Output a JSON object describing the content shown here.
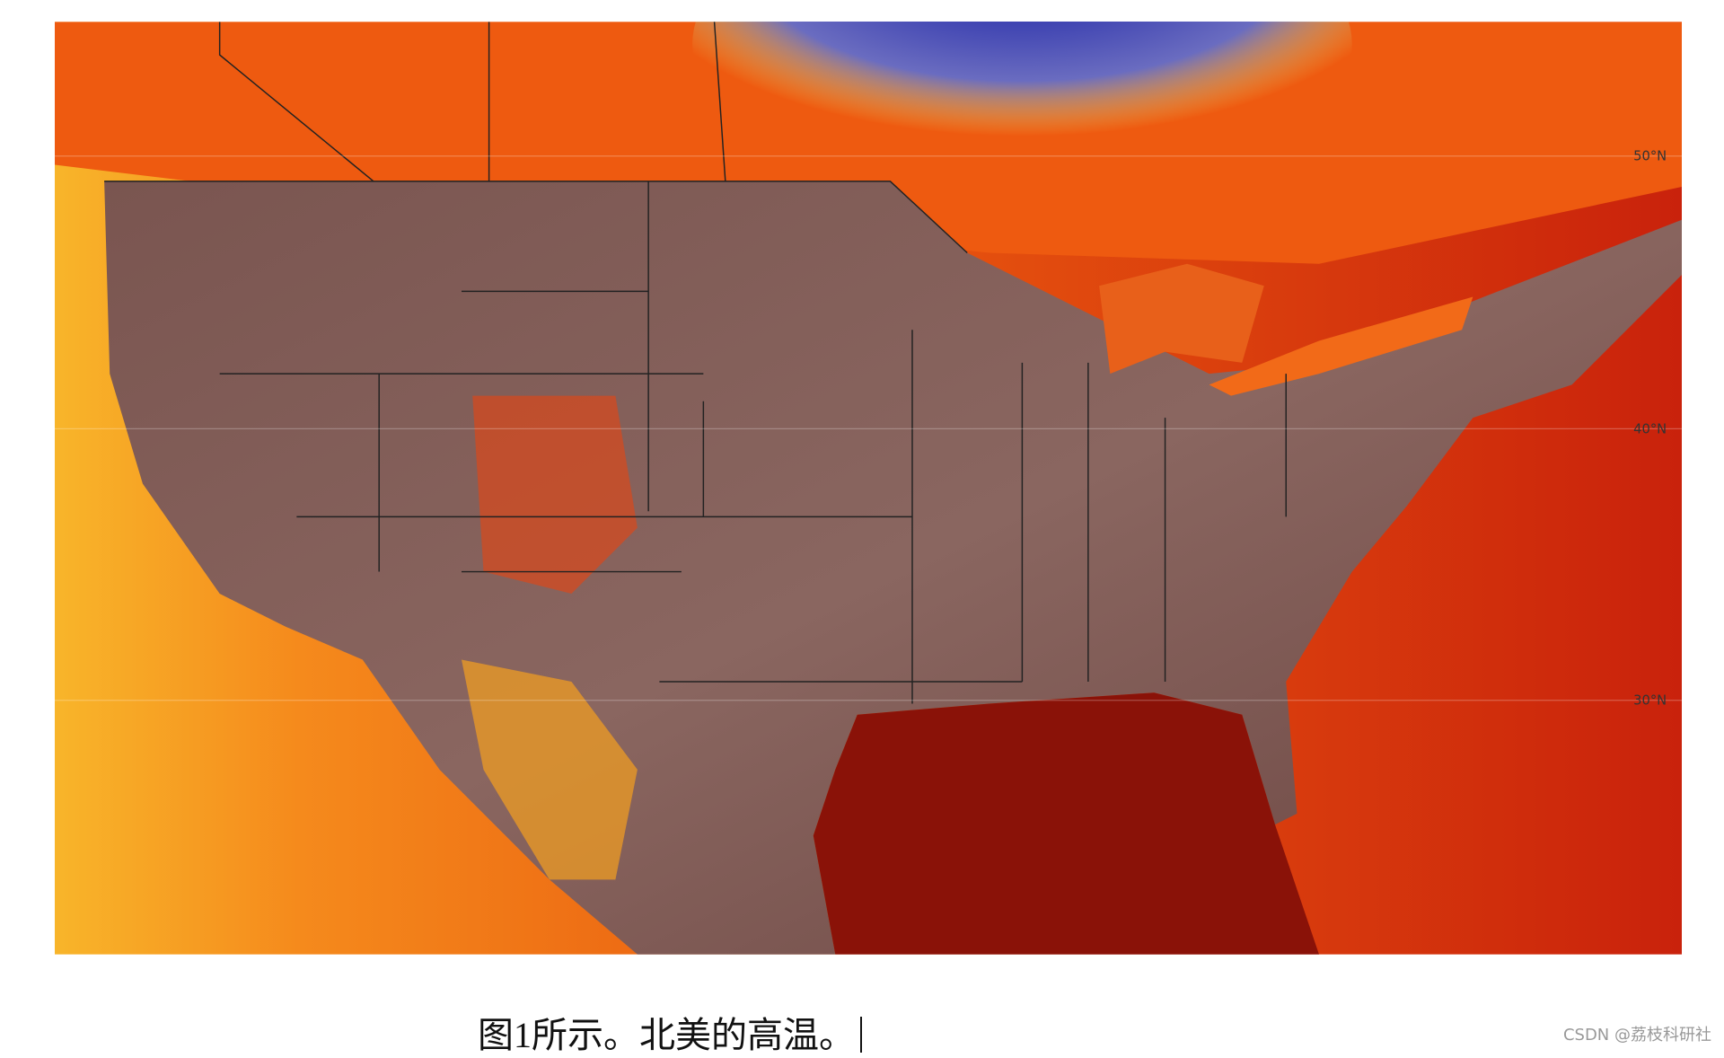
{
  "figure": {
    "lat_labels": [
      "50°N",
      "40°N",
      "30°N"
    ]
  },
  "caption": "图1所示。北美的高温。",
  "watermark": "CSDN @荔枝科研社"
}
